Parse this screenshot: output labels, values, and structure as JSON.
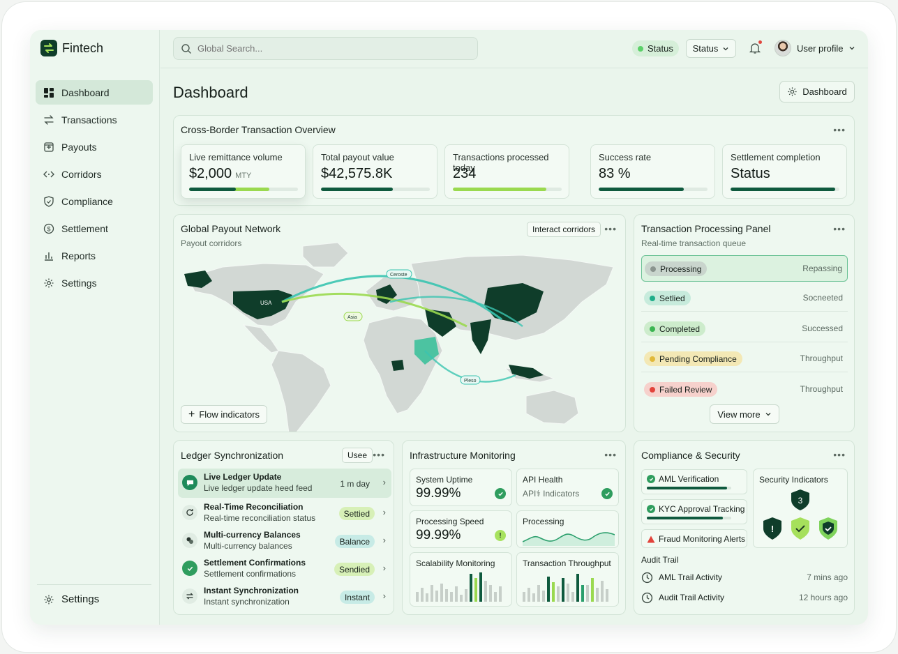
{
  "app": {
    "name": "Fintech"
  },
  "sidebar": {
    "items": [
      {
        "label": "Dashboard"
      },
      {
        "label": "Transactions"
      },
      {
        "label": "Payouts"
      },
      {
        "label": "Corridors"
      },
      {
        "label": "Compliance"
      },
      {
        "label": "Settlement"
      },
      {
        "label": "Reports"
      },
      {
        "label": "Settings"
      }
    ],
    "footer_label": "Settings"
  },
  "topbar": {
    "search_placeholder": "Global Search...",
    "status_pill": "Status",
    "status_select": "Status",
    "profile_label": "User profile"
  },
  "page": {
    "title": "Dashboard",
    "button_label": "Dashboard"
  },
  "overview": {
    "title": "Cross-Border Transaction Overview",
    "kpis": [
      {
        "label": "Live remittance volume",
        "value": "$2,000",
        "unit": "MTY",
        "progress_dark": 0.43,
        "progress_light": 0.74
      },
      {
        "label": "Total payout value",
        "value": "$42,575.8K",
        "progress_dark": 0.66
      },
      {
        "label": "Transactions processed today",
        "value": "234",
        "progress_light": 0.86
      },
      {
        "label": "Success rate",
        "value": "83 %",
        "progress_dark": 0.78
      },
      {
        "label": "Settlement completion",
        "value": "Status",
        "progress_dark": 0.96
      }
    ]
  },
  "network": {
    "title": "Global Payout Network",
    "subtitle": "Payout corridors",
    "button_label": "Interact corridors",
    "flow_button_label": "Flow indicators",
    "map_labels": {
      "usa": "USA",
      "europe_route": "Ceroste",
      "asia_route": "Asia",
      "pacific_route": "Pleso"
    }
  },
  "processing": {
    "title": "Transaction Processing Panel",
    "subtitle": "Real-time transaction queue",
    "rows": [
      {
        "badge": "Processing",
        "status": "Repassing",
        "color": "#8a948e",
        "bg": "#c9d5cd"
      },
      {
        "badge": "Setlied",
        "status": "Socneeted",
        "color": "#1fae8a",
        "bg": "#c7ebdc"
      },
      {
        "badge": "Completed",
        "status": "Successed",
        "color": "#3cb552",
        "bg": "#cdeccc"
      },
      {
        "badge": "Pending Compliance",
        "status": "Throughput",
        "color": "#e1b93a",
        "bg": "#f3e8b5"
      },
      {
        "badge": "Failed Review",
        "status": "Throughput",
        "color": "#e2433b",
        "bg": "#f6d1cc"
      }
    ],
    "view_more_label": "View more"
  },
  "ledger": {
    "title": "Ledger Synchronization",
    "button_label": "Usee",
    "rows": [
      {
        "title": "Live Ledger Update",
        "sub": "Live ledger update heed feed",
        "badge": "1 m day"
      },
      {
        "title": "Real-Time Reconciliation",
        "sub": "Real-time reconciliation status",
        "badge": "Settied"
      },
      {
        "title": "Multi-currency Balances",
        "sub": "Multi-currency balances",
        "badge": "Balance"
      },
      {
        "title": "Settlement Confirmations",
        "sub": "Settlement confirmations",
        "badge": "Sendied"
      },
      {
        "title": "Instant Synchronization",
        "sub": "Instant synchronization",
        "badge": "Instant"
      }
    ]
  },
  "infra": {
    "title": "Infrastructure Monitoring",
    "tiles": {
      "uptime": {
        "label": "System Uptime",
        "value": "99.99%"
      },
      "api": {
        "label": "API Health",
        "sub": "API⚕ Indicators"
      },
      "speed": {
        "label": "Processing Speed",
        "value": "99.99%"
      },
      "processing": {
        "label": "Processing"
      },
      "scalability": {
        "label": "Scalability Monitoring"
      },
      "throughput": {
        "label": "Transaction Throughput"
      }
    }
  },
  "compliance": {
    "title": "Compliance & Security",
    "items": [
      {
        "label": "AML Verification",
        "progress": 0.95
      },
      {
        "label": "KYC Approval Tracking",
        "progress": 0.9
      },
      {
        "label": "Fraud Monitoring Alerts"
      }
    ],
    "security_title": "Security Indicators",
    "security_badge": "3",
    "audit_title": "Audit Trail",
    "audit": [
      {
        "label": "AML Trail Activity",
        "time": "7 mins ago"
      },
      {
        "label": "Audit Trail Activity",
        "time": "12 hours ago"
      }
    ]
  },
  "colors": {
    "brand_dark": "#0f3d2a",
    "accent_green": "#9ad94f",
    "teal": "#36c2a8"
  }
}
